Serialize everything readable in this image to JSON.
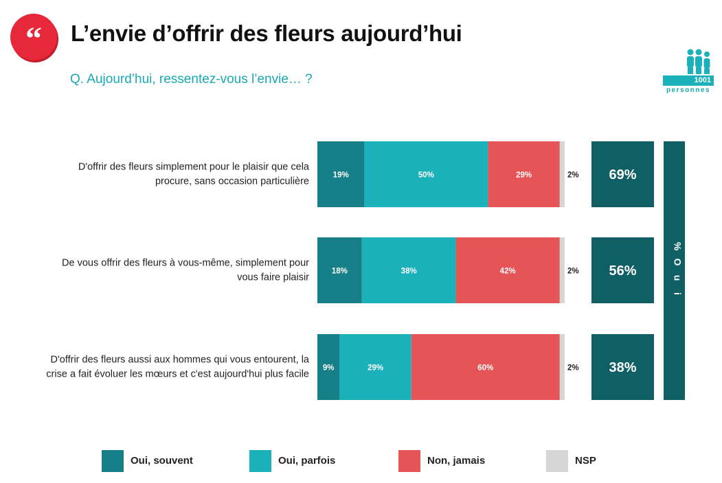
{
  "header": {
    "title": "L’envie d’offrir des fleurs aujourd’hui",
    "subtitle": "Q. Aujourd’hui, ressentez-vous l’envie… ?",
    "quote_icon": "quote-marks-icon"
  },
  "logo": {
    "count": "1001",
    "label": "personnes",
    "icon": "people-icon"
  },
  "colors": {
    "oui_souvent": "#177f87",
    "oui_parfois": "#1ab1bb",
    "non_jamais": "#e55557",
    "nsp": "#d6d6d6",
    "total": "#0f5f64",
    "accent_red": "#e7273a",
    "subtitle_teal": "#17a8b4"
  },
  "chart_data": {
    "type": "bar",
    "orientation": "horizontal",
    "stacked": true,
    "categories": [
      [
        "D'offrir des fleurs simplement pour le plaisir que cela",
        "procure, sans occasion particulière"
      ],
      [
        "De vous offrir des fleurs à vous-même, simplement pour",
        "vous faire plaisir"
      ],
      [
        "D'offrir des fleurs aussi aux hommes qui vous entourent, la",
        "crise a fait évoluer les mœurs et c'est aujourd'hui plus facile"
      ]
    ],
    "series": [
      {
        "name": "Oui, souvent",
        "values": [
          19,
          18,
          9
        ],
        "labels": [
          "19%",
          "18%",
          "9%"
        ]
      },
      {
        "name": "Oui, parfois",
        "values": [
          50,
          38,
          29
        ],
        "labels": [
          "50%",
          "38%",
          "29%"
        ]
      },
      {
        "name": "Non, jamais",
        "values": [
          29,
          42,
          60
        ],
        "labels": [
          "29%",
          "42%",
          "60%"
        ]
      },
      {
        "name": "NSP",
        "values": [
          2,
          2,
          2
        ],
        "labels": [
          "2%",
          "2%",
          "2%"
        ]
      }
    ],
    "totals": {
      "label": "% Oui",
      "values": [
        69,
        56,
        38
      ],
      "labels": [
        "69%",
        "56%",
        "38%"
      ]
    },
    "legend_position": "bottom",
    "grid": false,
    "xlim": [
      0,
      100
    ]
  }
}
